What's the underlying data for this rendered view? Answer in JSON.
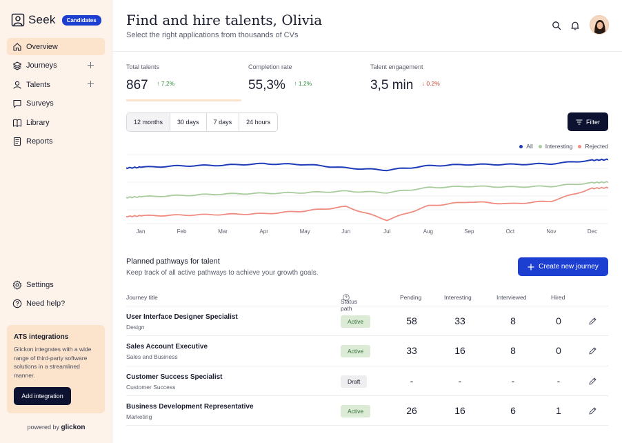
{
  "sidebar": {
    "brand": "Seek",
    "badge": "Candidates",
    "items": [
      {
        "label": "Overview",
        "icon": "home-icon",
        "active": true
      },
      {
        "label": "Journeys",
        "icon": "layers-icon",
        "plus": true
      },
      {
        "label": "Talents",
        "icon": "user-icon",
        "plus": true
      },
      {
        "label": "Surveys",
        "icon": "chat-icon"
      },
      {
        "label": "Library",
        "icon": "book-icon"
      },
      {
        "label": "Reports",
        "icon": "report-icon"
      }
    ],
    "bottom_items": [
      {
        "label": "Settings",
        "icon": "gear-icon"
      },
      {
        "label": "Need help?",
        "icon": "help-icon"
      }
    ],
    "ats": {
      "title": "ATS integrations",
      "description": "Glickon integrates with a wide range of third-party software solutions in a streamlined manner.",
      "button": "Add integration"
    },
    "powered_by": "powered by",
    "powered_brand": "glickon"
  },
  "header": {
    "title": "Find and hire talents, Olivia",
    "subtitle": "Select the right applications from thousands of CVs"
  },
  "stats": [
    {
      "label": "Total talents",
      "value": "867",
      "change": "7.2%",
      "direction": "up"
    },
    {
      "label": "Completion rate",
      "value": "55,3%",
      "change": "1.2%",
      "direction": "up"
    },
    {
      "label": "Talent engagement",
      "value": "3,5 min",
      "change": "0.2%",
      "direction": "down"
    }
  ],
  "completion_progress": 1.0,
  "ranges": [
    "12 months",
    "30 days",
    "7 days",
    "24 hours"
  ],
  "active_range": 0,
  "filter_label": "Filter",
  "colors": {
    "all": "#1d3bb8",
    "interesting": "#a8cc9c",
    "rejected": "#f08b80",
    "primary": "#1d3fd1",
    "dark": "#0d1230"
  },
  "chart_data": {
    "type": "line",
    "x": [
      "Jan",
      "Feb",
      "Mar",
      "Apr",
      "May",
      "Jun",
      "Jul",
      "Aug",
      "Sep",
      "Oct",
      "Nov",
      "Dec"
    ],
    "series": [
      {
        "name": "All",
        "values": [
          80,
          82,
          83,
          85,
          84,
          79,
          76,
          82,
          84,
          84,
          85,
          90
        ]
      },
      {
        "name": "Interesting",
        "values": [
          38,
          40,
          42,
          43,
          44,
          46,
          44,
          51,
          53,
          52,
          53,
          58
        ]
      },
      {
        "name": "Rejected",
        "values": [
          11,
          12,
          13,
          14,
          18,
          24,
          5,
          25,
          31,
          28,
          32,
          50
        ]
      }
    ],
    "ylim": [
      0,
      100
    ],
    "grid": true,
    "legend": "top-right"
  },
  "pathways": {
    "title": "Planned pathways for talent",
    "subtitle": "Keep track of all active pathways to achieve your growth goals.",
    "create_button": "Create new journey",
    "columns": [
      "Journey title",
      "Status path",
      "Pending",
      "Interesting",
      "Interviewed",
      "Hired"
    ],
    "rows": [
      {
        "title": "User Interface Designer Specialist",
        "category": "Design",
        "status": "Active",
        "pending": "58",
        "interesting": "33",
        "interviewed": "8",
        "hired": "0"
      },
      {
        "title": "Sales Account Executive",
        "category": "Sales and Business",
        "status": "Active",
        "pending": "33",
        "interesting": "16",
        "interviewed": "8",
        "hired": "0"
      },
      {
        "title": "Customer Success Specialist",
        "category": "Customer Success",
        "status": "Draft",
        "pending": "-",
        "interesting": "-",
        "interviewed": "-",
        "hired": "-"
      },
      {
        "title": "Business Development Representative",
        "category": "Marketing",
        "status": "Active",
        "pending": "26",
        "interesting": "16",
        "interviewed": "6",
        "hired": "1"
      }
    ]
  }
}
